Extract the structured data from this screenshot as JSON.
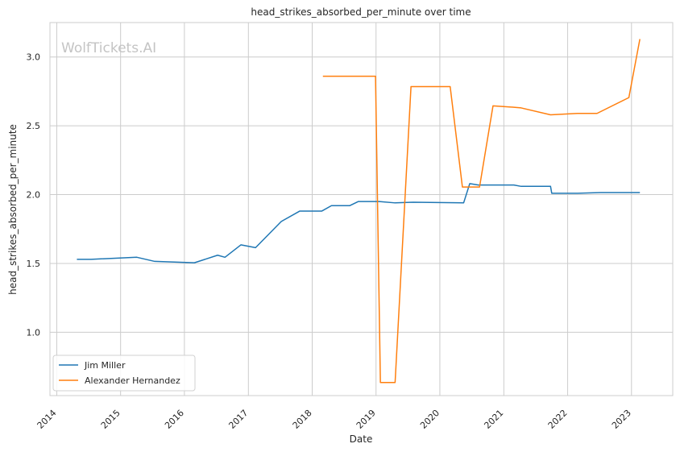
{
  "chart_data": {
    "type": "line",
    "title": "head_strikes_absorbed_per_minute over time",
    "xlabel": "Date",
    "ylabel": "head_strikes_absorbed_per_minute",
    "watermark": "WolfTickets.AI",
    "x_ticks": [
      "2014",
      "2015",
      "2016",
      "2017",
      "2018",
      "2019",
      "2020",
      "2021",
      "2022",
      "2023"
    ],
    "y_ticks": [
      "1.0",
      "1.5",
      "2.0",
      "2.5",
      "3.0"
    ],
    "xlim": [
      "2013-11-23",
      "2023-08-25"
    ],
    "ylim": [
      0.54,
      3.25
    ],
    "grid": true,
    "legend_position": "bottom-left",
    "series": [
      {
        "name": "Jim Miller",
        "color": "#1f77b4",
        "points": [
          [
            "2014-04-26",
            1.53
          ],
          [
            "2014-07-16",
            1.53
          ],
          [
            "2015-04-04",
            1.545
          ],
          [
            "2015-07-15",
            1.515
          ],
          [
            "2016-02-27",
            1.505
          ],
          [
            "2016-07-09",
            1.56
          ],
          [
            "2016-08-20",
            1.545
          ],
          [
            "2016-11-19",
            1.635
          ],
          [
            "2017-02-11",
            1.615
          ],
          [
            "2017-07-08",
            1.805
          ],
          [
            "2017-10-21",
            1.88
          ],
          [
            "2018-02-24",
            1.88
          ],
          [
            "2018-04-21",
            1.92
          ],
          [
            "2018-08-04",
            1.92
          ],
          [
            "2018-09-22",
            1.95
          ],
          [
            "2019-01-19",
            1.95
          ],
          [
            "2019-04-20",
            1.94
          ],
          [
            "2019-08-03",
            1.945
          ],
          [
            "2020-05-16",
            1.94
          ],
          [
            "2020-06-20",
            2.08
          ],
          [
            "2020-08-08",
            2.07
          ],
          [
            "2021-02-27",
            2.07
          ],
          [
            "2021-04-10",
            2.06
          ],
          [
            "2021-09-25",
            2.06
          ],
          [
            "2021-10-02",
            2.01
          ],
          [
            "2022-02-26",
            2.01
          ],
          [
            "2022-07-09",
            2.015
          ],
          [
            "2023-02-18",
            2.015
          ]
        ]
      },
      {
        "name": "Alexander Hernandez",
        "color": "#ff7f0e",
        "points": [
          [
            "2018-03-03",
            2.86
          ],
          [
            "2018-12-29",
            2.86
          ],
          [
            "2019-01-26",
            0.635
          ],
          [
            "2019-04-20",
            0.635
          ],
          [
            "2019-07-20",
            2.785
          ],
          [
            "2020-02-29",
            2.785
          ],
          [
            "2020-05-09",
            2.055
          ],
          [
            "2020-08-15",
            2.055
          ],
          [
            "2020-10-31",
            2.645
          ],
          [
            "2021-02-27",
            2.635
          ],
          [
            "2021-04-10",
            2.63
          ],
          [
            "2021-09-25",
            2.58
          ],
          [
            "2022-02-26",
            2.59
          ],
          [
            "2022-06-18",
            2.59
          ],
          [
            "2022-12-17",
            2.705
          ],
          [
            "2023-02-18",
            3.13
          ]
        ]
      }
    ]
  }
}
